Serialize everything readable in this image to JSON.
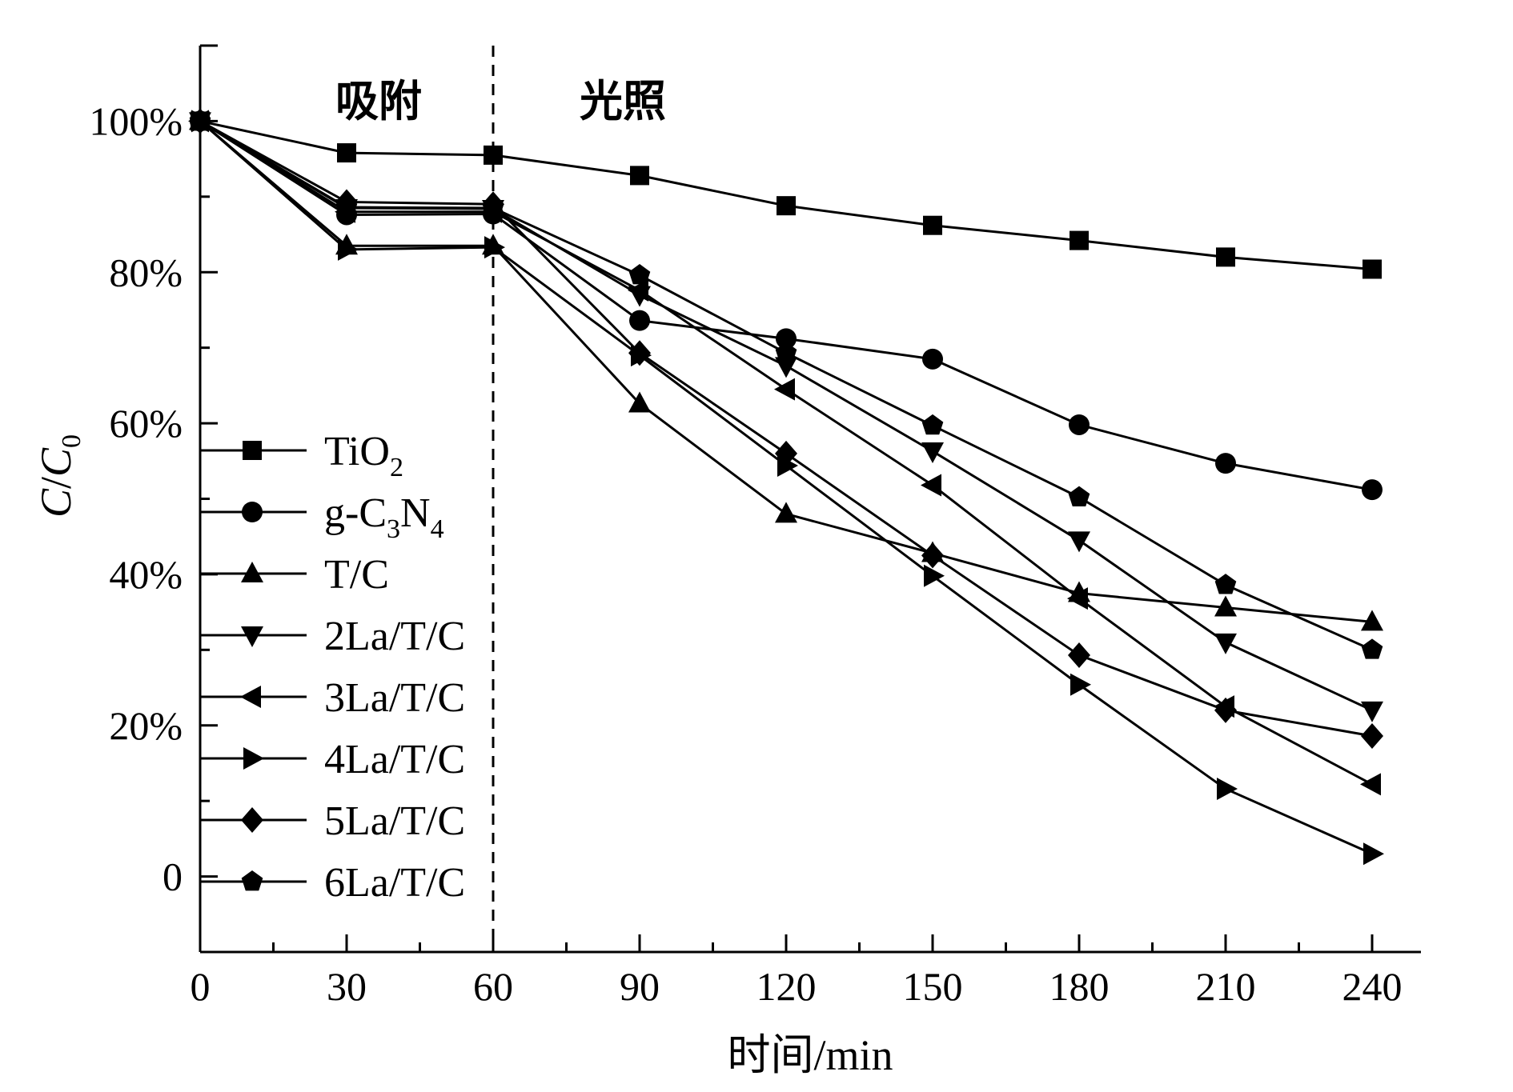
{
  "chart_data": {
    "type": "line",
    "title": "",
    "xlabel": "时间/min",
    "ylabel": {
      "main": "C",
      "slash": "/",
      "sub_main": "C",
      "sub": "0"
    },
    "xlim": [
      0,
      250
    ],
    "ylim": [
      -10,
      110
    ],
    "x_ticks": [
      "0",
      "30",
      "60",
      "90",
      "120",
      "150",
      "180",
      "210",
      "240"
    ],
    "x_tick_values": [
      0,
      30,
      60,
      90,
      120,
      150,
      180,
      210,
      240
    ],
    "y_ticks": [
      "0",
      "20%",
      "40%",
      "60%",
      "80%",
      "100%"
    ],
    "y_tick_values": [
      0,
      20,
      40,
      60,
      80,
      100
    ],
    "divider_x": 60,
    "phases": [
      {
        "label": "吸附",
        "x": 30
      },
      {
        "label": "光照",
        "x": 80
      }
    ],
    "legend_position": "left",
    "x": [
      0,
      30,
      60,
      90,
      120,
      150,
      180,
      210,
      240
    ],
    "series": [
      {
        "name": "TiO",
        "sub": "2",
        "marker": "square",
        "values": [
          100,
          95.8,
          95.5,
          92.8,
          88.8,
          86.2,
          84.2,
          82,
          80.4
        ]
      },
      {
        "name": "g-C",
        "sub": "3",
        "name2": "N",
        "sub2": "4",
        "marker": "circle",
        "values": [
          100,
          87.6,
          87.7,
          73.6,
          71.2,
          68.5,
          59.8,
          54.7,
          51.2
        ]
      },
      {
        "name": "T/C",
        "marker": "triangle-up",
        "values": [
          100,
          83.5,
          83.5,
          62.6,
          48,
          42.8,
          37.5,
          35.6,
          33.7
        ]
      },
      {
        "name": "2La/T/C",
        "marker": "triangle-down",
        "values": [
          100,
          88.5,
          88.4,
          77,
          67.6,
          56.3,
          44.5,
          31,
          22
        ]
      },
      {
        "name": "3La/T/C",
        "marker": "triangle-left",
        "values": [
          100,
          88,
          88,
          77.6,
          64.5,
          51.8,
          36.8,
          22.5,
          12.2
        ]
      },
      {
        "name": "4La/T/C",
        "marker": "triangle-right",
        "values": [
          100,
          83,
          83.3,
          69,
          54.4,
          39.8,
          25.4,
          11.6,
          3
        ]
      },
      {
        "name": "5La/T/C",
        "marker": "diamond",
        "values": [
          100,
          89.3,
          89,
          69.3,
          56,
          42.5,
          29.3,
          22,
          18.6
        ]
      },
      {
        "name": "6La/T/C",
        "marker": "pentagon",
        "values": [
          100,
          88.6,
          88.5,
          79.6,
          69.3,
          59.7,
          50.2,
          38.6,
          30
        ]
      }
    ]
  }
}
